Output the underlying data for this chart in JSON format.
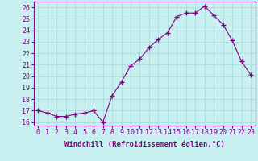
{
  "x": [
    0,
    1,
    2,
    3,
    4,
    5,
    6,
    7,
    8,
    9,
    10,
    11,
    12,
    13,
    14,
    15,
    16,
    17,
    18,
    19,
    20,
    21,
    22,
    23
  ],
  "y": [
    17.0,
    16.8,
    16.5,
    16.5,
    16.7,
    16.8,
    17.0,
    16.0,
    18.3,
    19.5,
    20.9,
    21.5,
    22.5,
    23.2,
    23.8,
    25.2,
    25.5,
    25.5,
    26.1,
    25.3,
    24.5,
    23.1,
    21.3,
    20.1
  ],
  "line_color": "#800080",
  "marker": "+",
  "marker_size": 4,
  "bg_color": "#c8f0f0",
  "grid_color": "#a8d8d8",
  "xlabel": "Windchill (Refroidissement éolien,°C)",
  "ylabel_ticks": [
    16,
    17,
    18,
    19,
    20,
    21,
    22,
    23,
    24,
    25,
    26
  ],
  "xlim": [
    -0.5,
    23.5
  ],
  "ylim": [
    15.7,
    26.5
  ],
  "tick_label_color": "#800080",
  "tick_label_size": 6,
  "xlabel_size": 6.5,
  "border_color": "#800080"
}
